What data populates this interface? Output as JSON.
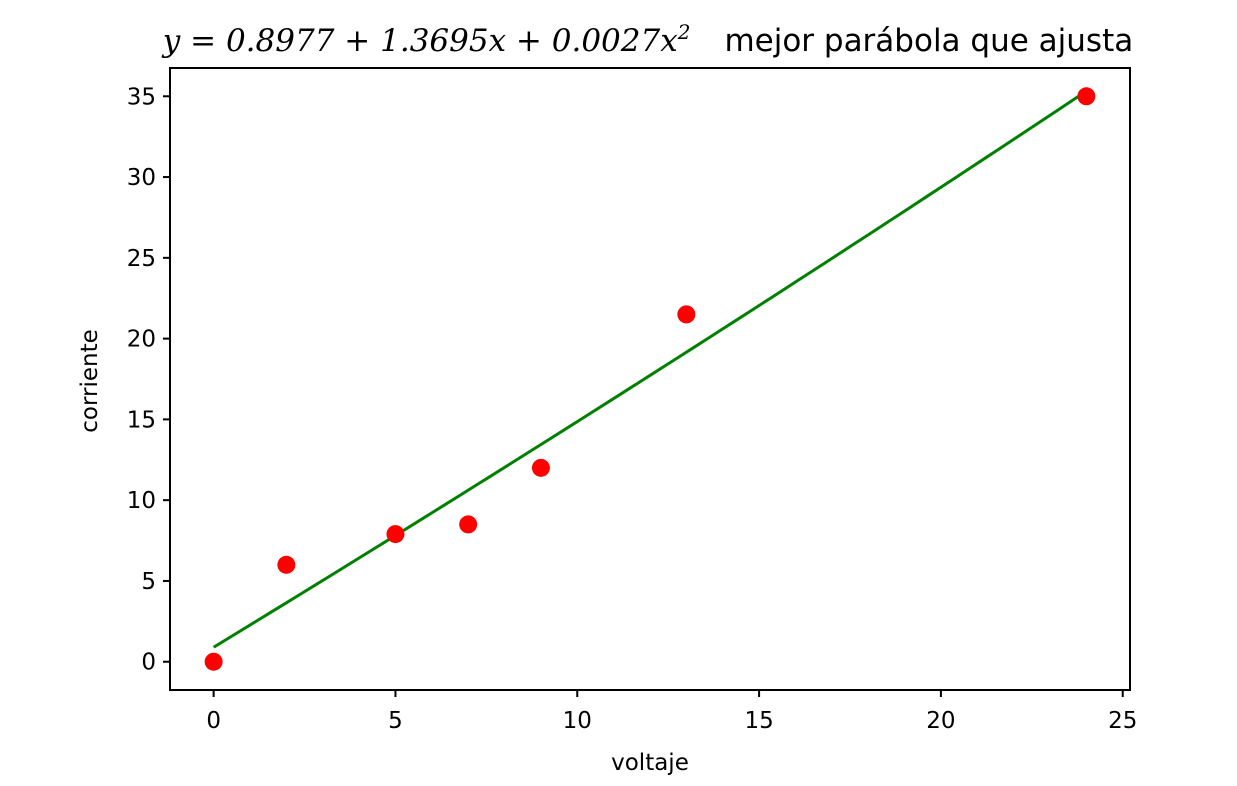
{
  "chart_data": {
    "type": "scatter",
    "title": {
      "equation": "y = 0.8977 + 1.3695x + 0.0027x^2",
      "caption": "mejor parábola que ajusta"
    },
    "xlabel": "voltaje",
    "ylabel": "corriente",
    "xlim": [
      -1.2,
      25.2
    ],
    "ylim": [
      -1.75,
      36.75
    ],
    "xticks": [
      0,
      5,
      10,
      15,
      20,
      25
    ],
    "yticks": [
      0,
      5,
      10,
      15,
      20,
      25,
      30,
      35
    ],
    "grid": false,
    "series": [
      {
        "kind": "scatter",
        "color": "#ff0000",
        "points": [
          {
            "x": 0,
            "y": 0
          },
          {
            "x": 2,
            "y": 6
          },
          {
            "x": 5,
            "y": 7.9
          },
          {
            "x": 7,
            "y": 8.5
          },
          {
            "x": 9,
            "y": 12
          },
          {
            "x": 13,
            "y": 21.5
          },
          {
            "x": 24,
            "y": 35
          }
        ]
      },
      {
        "kind": "line",
        "color": "#008000",
        "coefficients": [
          0.8977,
          1.3695,
          0.0027
        ],
        "x_range": [
          0,
          24
        ]
      }
    ]
  }
}
